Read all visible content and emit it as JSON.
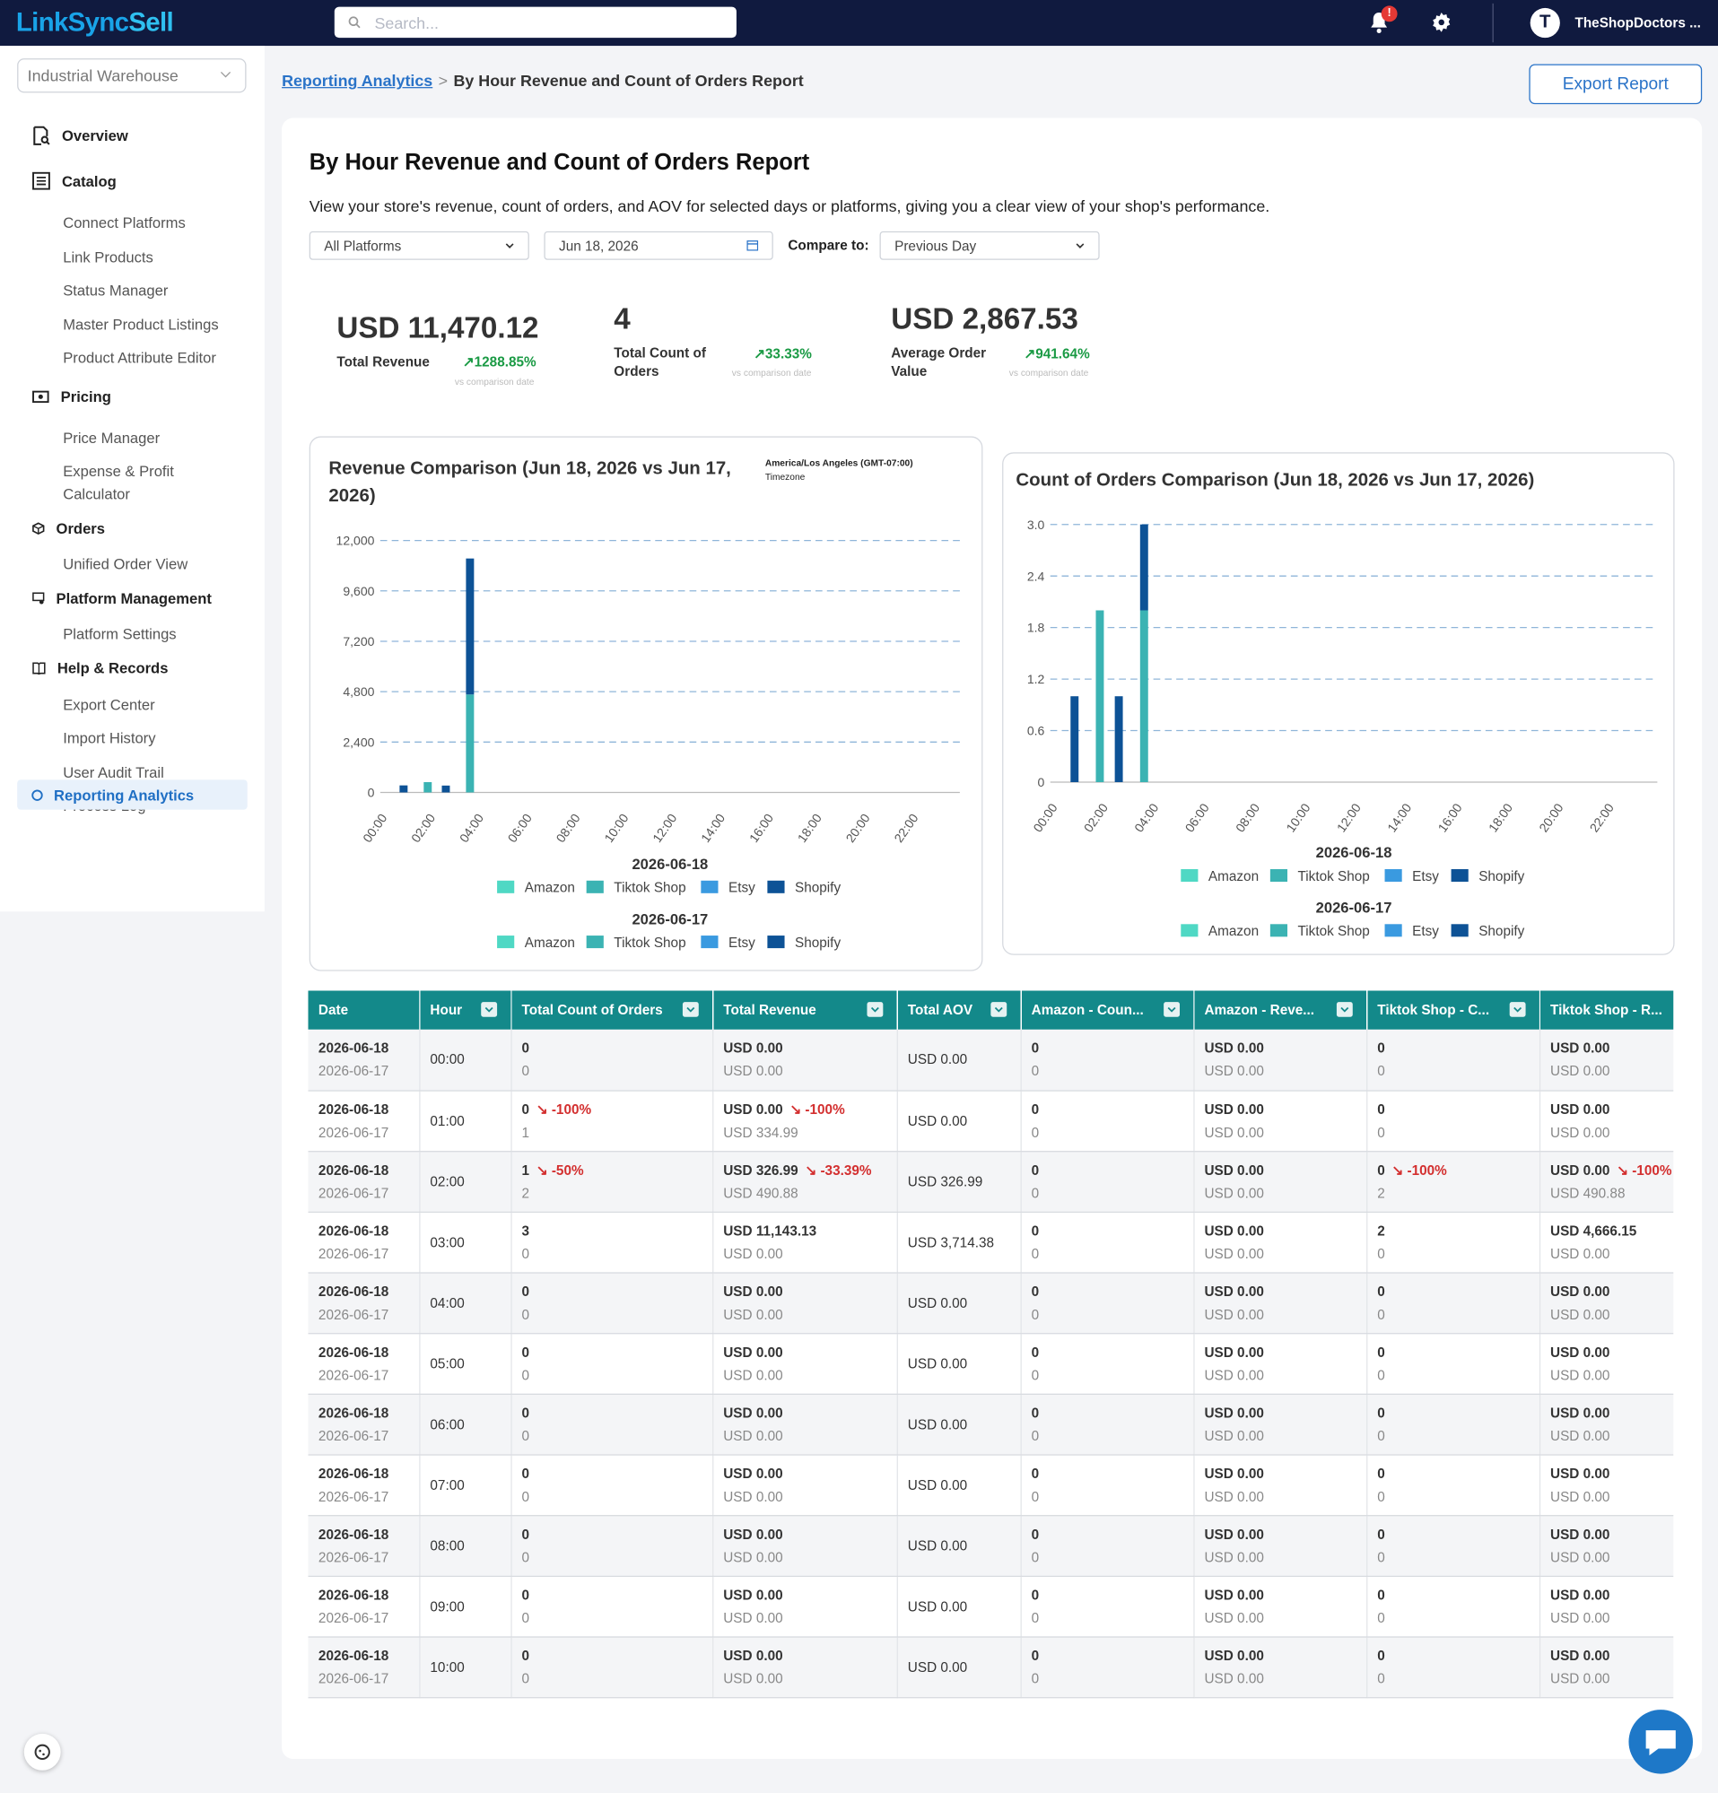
{
  "app": {
    "logo_a": "LinkSync",
    "logo_b": "Sell",
    "search_placeholder": "Search...",
    "notif_count": "!",
    "avatar_letter": "T",
    "user_name": "TheShopDoctors ..."
  },
  "sidebar": {
    "warehouse": "Industrial Warehouse",
    "overview": "Overview",
    "catalog": "Catalog",
    "catalog_items": [
      "Connect Platforms",
      "Link Products",
      "Status Manager",
      "Master Product Listings",
      "Product Attribute Editor"
    ],
    "pricing": "Pricing",
    "pricing_items": [
      "Price Manager",
      "Expense & Profit",
      "Calculator"
    ],
    "orders": "Orders",
    "orders_items": [
      "Unified Order View"
    ],
    "platform": "Platform Management",
    "platform_items": [
      "Platform Settings"
    ],
    "help": "Help & Records",
    "help_items": [
      "Export Center",
      "Import History",
      "User Audit Trail",
      "Process Log"
    ],
    "active": "Reporting Analytics"
  },
  "breadcrumb": {
    "parent": "Reporting Analytics",
    "sep": ">",
    "current": "By Hour Revenue and Count of Orders Report"
  },
  "export_label": "Export Report",
  "page": {
    "title": "By Hour Revenue and Count of Orders Report",
    "description": "View your store's revenue, count of orders, and AOV for selected days or platforms, giving you a clear view of your shop's performance."
  },
  "filters": {
    "platform": "All Platforms",
    "date": "Jun 18, 2026",
    "compare_label": "Compare to:",
    "compare": "Previous Day"
  },
  "kpis": [
    {
      "value": "USD 11,470.12",
      "label": "Total Revenue",
      "change": "1288.85%",
      "sub": "vs comparison date"
    },
    {
      "value": "4",
      "label": "Total Count of",
      "label2": "Orders",
      "change": "33.33%",
      "sub": "vs comparison date"
    },
    {
      "value": "USD 2,867.53",
      "label": "Average Order",
      "label2": "Value",
      "change": "941.64%",
      "sub": "vs comparison date"
    }
  ],
  "colors": {
    "amazon": "#4fd8c4",
    "tiktok": "#3bb3b3",
    "etsy": "#3a9ae0",
    "shopify": "#0d5296",
    "header": "#13898a",
    "brand": "#2a73c8"
  },
  "chart_data": [
    {
      "type": "bar",
      "title": "Revenue Comparison (Jun 18, 2026 vs Jun 17, 2026)",
      "timezone": "America/Los Angeles (GMT-07:00)",
      "timezone_label": "Timezone",
      "stacked": true,
      "ylim": [
        0,
        12000
      ],
      "yticks": [
        "0",
        "2,400",
        "4,800",
        "7,200",
        "9,600",
        "12,000"
      ],
      "xticks": [
        "00:00",
        "02:00",
        "04:00",
        "06:00",
        "08:00",
        "10:00",
        "12:00",
        "14:00",
        "16:00",
        "18:00",
        "20:00",
        "22:00"
      ],
      "legend_groups": [
        "2026-06-18",
        "2026-06-17"
      ],
      "series_names": [
        "Amazon",
        "Tiktok Shop",
        "Etsy",
        "Shopify"
      ],
      "bars": [
        {
          "hour": 1,
          "group": "2026-06-17",
          "segments": [
            {
              "series": "Shopify",
              "value": 334.99
            }
          ]
        },
        {
          "hour": 2,
          "group": "2026-06-18",
          "segments": [
            {
              "series": "Shopify",
              "value": 326.99
            }
          ]
        },
        {
          "hour": 2,
          "group": "2026-06-17",
          "segments": [
            {
              "series": "Tiktok Shop",
              "value": 490.88
            }
          ]
        },
        {
          "hour": 3,
          "group": "2026-06-18",
          "segments": [
            {
              "series": "Tiktok Shop",
              "value": 4666.15
            },
            {
              "series": "Shopify",
              "value": 6476.98
            }
          ]
        }
      ]
    },
    {
      "type": "bar",
      "title": "Count of Orders Comparison (Jun 18, 2026 vs Jun 17, 2026)",
      "stacked": true,
      "ylim": [
        0,
        3
      ],
      "yticks": [
        "0",
        "0.6",
        "1.2",
        "1.8",
        "2.4",
        "3.0"
      ],
      "xticks": [
        "00:00",
        "02:00",
        "04:00",
        "06:00",
        "08:00",
        "10:00",
        "12:00",
        "14:00",
        "16:00",
        "18:00",
        "20:00",
        "22:00"
      ],
      "legend_groups": [
        "2026-06-18",
        "2026-06-17"
      ],
      "series_names": [
        "Amazon",
        "Tiktok Shop",
        "Etsy",
        "Shopify"
      ],
      "bars": [
        {
          "hour": 1,
          "group": "2026-06-17",
          "segments": [
            {
              "series": "Shopify",
              "value": 1
            }
          ]
        },
        {
          "hour": 2,
          "group": "2026-06-18",
          "segments": [
            {
              "series": "Shopify",
              "value": 1
            }
          ]
        },
        {
          "hour": 2,
          "group": "2026-06-17",
          "segments": [
            {
              "series": "Tiktok Shop",
              "value": 2
            }
          ]
        },
        {
          "hour": 3,
          "group": "2026-06-18",
          "segments": [
            {
              "series": "Tiktok Shop",
              "value": 2
            },
            {
              "series": "Shopify",
              "value": 1
            }
          ]
        }
      ]
    }
  ],
  "table": {
    "columns": [
      "Date",
      "Hour",
      "Total Count of Orders",
      "Total Revenue",
      "Total AOV",
      "Amazon - Coun...",
      "Amazon - Reve...",
      "Tiktok Shop - C...",
      "Tiktok Shop - R..."
    ],
    "rows": [
      {
        "d1": "2026-06-18",
        "d2": "2026-06-17",
        "hour": "00:00",
        "cnt": [
          "0",
          "",
          "0"
        ],
        "rev": [
          "USD 0.00",
          "",
          "USD 0.00"
        ],
        "aov": "USD 0.00",
        "amc": [
          "0",
          "0"
        ],
        "amr": [
          "USD 0.00",
          "USD 0.00"
        ],
        "ttc": [
          "0",
          "",
          "0"
        ],
        "ttr": [
          "USD 0.00",
          "",
          "USD 0.00"
        ]
      },
      {
        "d1": "2026-06-18",
        "d2": "2026-06-17",
        "hour": "01:00",
        "cnt": [
          "0",
          "↘ -100%",
          "1"
        ],
        "rev": [
          "USD 0.00",
          "↘ -100%",
          "USD 334.99"
        ],
        "aov": "USD 0.00",
        "amc": [
          "0",
          "0"
        ],
        "amr": [
          "USD 0.00",
          "USD 0.00"
        ],
        "ttc": [
          "0",
          "",
          "0"
        ],
        "ttr": [
          "USD 0.00",
          "",
          "USD 0.00"
        ]
      },
      {
        "d1": "2026-06-18",
        "d2": "2026-06-17",
        "hour": "02:00",
        "cnt": [
          "1",
          "↘ -50%",
          "2"
        ],
        "rev": [
          "USD 326.99",
          "↘ -33.39%",
          "USD 490.88"
        ],
        "aov": "USD 326.99",
        "amc": [
          "0",
          "0"
        ],
        "amr": [
          "USD 0.00",
          "USD 0.00"
        ],
        "ttc": [
          "0",
          "↘ -100%",
          "2"
        ],
        "ttr": [
          "USD 0.00",
          "↘ -100%",
          "USD 490.88"
        ]
      },
      {
        "d1": "2026-06-18",
        "d2": "2026-06-17",
        "hour": "03:00",
        "cnt": [
          "3",
          "",
          "0"
        ],
        "rev": [
          "USD 11,143.13",
          "",
          "USD 0.00"
        ],
        "aov": "USD 3,714.38",
        "amc": [
          "0",
          "0"
        ],
        "amr": [
          "USD 0.00",
          "USD 0.00"
        ],
        "ttc": [
          "2",
          "",
          "0"
        ],
        "ttr": [
          "USD 4,666.15",
          "",
          "USD 0.00"
        ]
      },
      {
        "d1": "2026-06-18",
        "d2": "2026-06-17",
        "hour": "04:00",
        "cnt": [
          "0",
          "",
          "0"
        ],
        "rev": [
          "USD 0.00",
          "",
          "USD 0.00"
        ],
        "aov": "USD 0.00",
        "amc": [
          "0",
          "0"
        ],
        "amr": [
          "USD 0.00",
          "USD 0.00"
        ],
        "ttc": [
          "0",
          "",
          "0"
        ],
        "ttr": [
          "USD 0.00",
          "",
          "USD 0.00"
        ]
      },
      {
        "d1": "2026-06-18",
        "d2": "2026-06-17",
        "hour": "05:00",
        "cnt": [
          "0",
          "",
          "0"
        ],
        "rev": [
          "USD 0.00",
          "",
          "USD 0.00"
        ],
        "aov": "USD 0.00",
        "amc": [
          "0",
          "0"
        ],
        "amr": [
          "USD 0.00",
          "USD 0.00"
        ],
        "ttc": [
          "0",
          "",
          "0"
        ],
        "ttr": [
          "USD 0.00",
          "",
          "USD 0.00"
        ]
      },
      {
        "d1": "2026-06-18",
        "d2": "2026-06-17",
        "hour": "06:00",
        "cnt": [
          "0",
          "",
          "0"
        ],
        "rev": [
          "USD 0.00",
          "",
          "USD 0.00"
        ],
        "aov": "USD 0.00",
        "amc": [
          "0",
          "0"
        ],
        "amr": [
          "USD 0.00",
          "USD 0.00"
        ],
        "ttc": [
          "0",
          "",
          "0"
        ],
        "ttr": [
          "USD 0.00",
          "",
          "USD 0.00"
        ]
      },
      {
        "d1": "2026-06-18",
        "d2": "2026-06-17",
        "hour": "07:00",
        "cnt": [
          "0",
          "",
          "0"
        ],
        "rev": [
          "USD 0.00",
          "",
          "USD 0.00"
        ],
        "aov": "USD 0.00",
        "amc": [
          "0",
          "0"
        ],
        "amr": [
          "USD 0.00",
          "USD 0.00"
        ],
        "ttc": [
          "0",
          "",
          "0"
        ],
        "ttr": [
          "USD 0.00",
          "",
          "USD 0.00"
        ]
      },
      {
        "d1": "2026-06-18",
        "d2": "2026-06-17",
        "hour": "08:00",
        "cnt": [
          "0",
          "",
          "0"
        ],
        "rev": [
          "USD 0.00",
          "",
          "USD 0.00"
        ],
        "aov": "USD 0.00",
        "amc": [
          "0",
          "0"
        ],
        "amr": [
          "USD 0.00",
          "USD 0.00"
        ],
        "ttc": [
          "0",
          "",
          "0"
        ],
        "ttr": [
          "USD 0.00",
          "",
          "USD 0.00"
        ]
      },
      {
        "d1": "2026-06-18",
        "d2": "2026-06-17",
        "hour": "09:00",
        "cnt": [
          "0",
          "",
          "0"
        ],
        "rev": [
          "USD 0.00",
          "",
          "USD 0.00"
        ],
        "aov": "USD 0.00",
        "amc": [
          "0",
          "0"
        ],
        "amr": [
          "USD 0.00",
          "USD 0.00"
        ],
        "ttc": [
          "0",
          "",
          "0"
        ],
        "ttr": [
          "USD 0.00",
          "",
          "USD 0.00"
        ]
      },
      {
        "d1": "2026-06-18",
        "d2": "2026-06-17",
        "hour": "10:00",
        "cnt": [
          "0",
          "",
          "0"
        ],
        "rev": [
          "USD 0.00",
          "",
          "USD 0.00"
        ],
        "aov": "USD 0.00",
        "amc": [
          "0",
          "0"
        ],
        "amr": [
          "USD 0.00",
          "USD 0.00"
        ],
        "ttc": [
          "0",
          "",
          "0"
        ],
        "ttr": [
          "USD 0.00",
          "",
          "USD 0.00"
        ]
      }
    ]
  }
}
